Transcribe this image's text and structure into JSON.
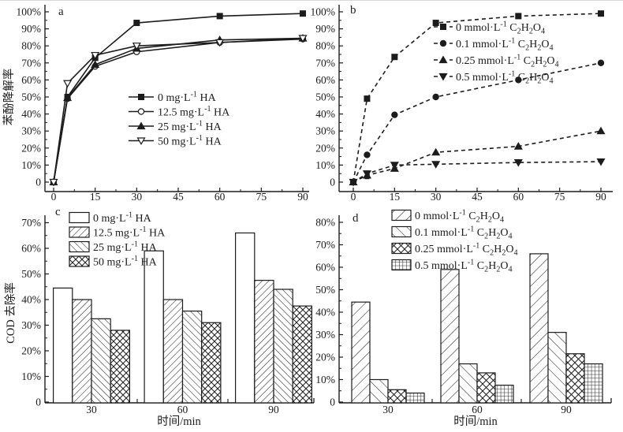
{
  "figure": {
    "background": "#ffffff",
    "ink_color": "#1c1c1c",
    "description_labels": {
      "panel_a": "a",
      "panel_b": "b",
      "panel_c": "c",
      "panel_d": "d"
    }
  },
  "chart_data": [
    {
      "id": "a",
      "type": "line",
      "panel_label": "a",
      "ylabel": "苯酚降解率",
      "xlabel": "",
      "x": [
        0,
        5,
        15,
        30,
        60,
        90
      ],
      "x_ticks": [
        0,
        15,
        30,
        45,
        60,
        75,
        90
      ],
      "y_ticks": [
        0,
        10,
        20,
        30,
        40,
        50,
        60,
        70,
        80,
        90,
        100
      ],
      "y_tick_format": "percent",
      "ylim": [
        0,
        105
      ],
      "line_style": "solid",
      "legend_position": "center",
      "series": [
        {
          "name": "0 mg·L^{-1} HA",
          "marker": "square",
          "fill": "filled",
          "values": [
            0,
            50,
            73,
            93.5,
            97.5,
            99
          ]
        },
        {
          "name": "12.5 mg·L^{-1} HA",
          "marker": "circle",
          "fill": "open",
          "values": [
            0,
            49,
            68,
            76.5,
            82,
            84
          ]
        },
        {
          "name": "25 mg·L^{-1} HA",
          "marker": "triangle-up",
          "fill": "filled",
          "values": [
            0,
            49.5,
            69,
            78.5,
            83.5,
            84.5
          ]
        },
        {
          "name": "50 mg·L^{-1} HA",
          "marker": "triangle-down",
          "fill": "open",
          "values": [
            0,
            58,
            74.5,
            80,
            82,
            84.5
          ]
        }
      ]
    },
    {
      "id": "b",
      "type": "line",
      "panel_label": "b",
      "ylabel": "",
      "xlabel": "",
      "x": [
        0,
        5,
        15,
        30,
        60,
        90
      ],
      "x_ticks": [
        0,
        15,
        30,
        45,
        60,
        75,
        90
      ],
      "y_ticks": [
        0,
        10,
        20,
        30,
        40,
        50,
        60,
        70,
        80,
        90,
        100
      ],
      "y_tick_format": "percent",
      "ylim": [
        0,
        105
      ],
      "line_style": "dashed",
      "legend_position": "upper-center",
      "series": [
        {
          "name": "0 mmol·L^{-1} C_{2}H_{2}O_{4}",
          "marker": "square",
          "fill": "filled",
          "values": [
            0,
            49,
            73.5,
            93.5,
            97.5,
            99
          ]
        },
        {
          "name": "0.1 mmol·L^{-1} C_{2}H_{2}O_{4}",
          "marker": "circle",
          "fill": "filled",
          "values": [
            0,
            16,
            39.5,
            50,
            60,
            70
          ]
        },
        {
          "name": "0.25 mmol·L^{-1} C_{2}H_{2}O_{4}",
          "marker": "triangle-up",
          "fill": "filled",
          "values": [
            0,
            4,
            8,
            17.5,
            21,
            30
          ],
          "yerr": [
            0,
            2,
            1.5,
            0,
            0,
            0
          ]
        },
        {
          "name": "0.5 mmol·L^{-1} C_{2}H_{2}O_{4}",
          "marker": "triangle-down",
          "fill": "filled",
          "values": [
            0,
            5,
            10,
            10.5,
            11.5,
            12
          ],
          "yerr": [
            0,
            1.5,
            1.5,
            0,
            0,
            0
          ]
        }
      ]
    },
    {
      "id": "c",
      "type": "bar",
      "panel_label": "c",
      "ylabel": "COD 去除率",
      "xlabel": "时间/min",
      "categories": [
        "30",
        "60",
        "90"
      ],
      "y_ticks": [
        0,
        10,
        20,
        30,
        40,
        50,
        60,
        70
      ],
      "y_tick_format": "percent",
      "ylim": [
        0,
        72
      ],
      "legend_position": "upper-left",
      "series": [
        {
          "name": "0 mg·L^{-1} HA",
          "pattern": "none",
          "values": [
            44.5,
            59,
            66
          ]
        },
        {
          "name": "12.5 mg·L^{-1} HA",
          "pattern": "diag-up",
          "values": [
            40,
            40,
            47.5
          ]
        },
        {
          "name": "25 mg·L^{-1} HA",
          "pattern": "diag-down",
          "values": [
            32.5,
            35.5,
            44
          ]
        },
        {
          "name": "50 mg·L^{-1} HA",
          "pattern": "cross",
          "values": [
            28,
            31,
            37.5
          ]
        }
      ]
    },
    {
      "id": "d",
      "type": "bar",
      "panel_label": "d",
      "ylabel": "",
      "xlabel": "时间/min",
      "categories": [
        "30",
        "60",
        "90"
      ],
      "y_ticks": [
        0,
        10,
        20,
        30,
        40,
        50,
        60,
        70,
        80
      ],
      "y_tick_format": "percent",
      "ylim": [
        0,
        82
      ],
      "legend_position": "upper-left",
      "series": [
        {
          "name": "0 mmol·L^{-1} C_{2}H_{2}O_{4}",
          "pattern": "diag-up-wide",
          "values": [
            44.5,
            59,
            66
          ]
        },
        {
          "name": "0.1 mmol·L^{-1} C_{2}H_{2}O_{4}",
          "pattern": "diag-down-wide",
          "values": [
            10,
            17,
            31
          ]
        },
        {
          "name": "0.25 mmol·L^{-1} C_{2}H_{2}O_{4}",
          "pattern": "cross-wide",
          "values": [
            5.5,
            13,
            21.5
          ]
        },
        {
          "name": "0.5 mmol·L^{-1} C_{2}H_{2}O_{4}",
          "pattern": "grid",
          "values": [
            4,
            7.5,
            17
          ]
        }
      ]
    }
  ]
}
